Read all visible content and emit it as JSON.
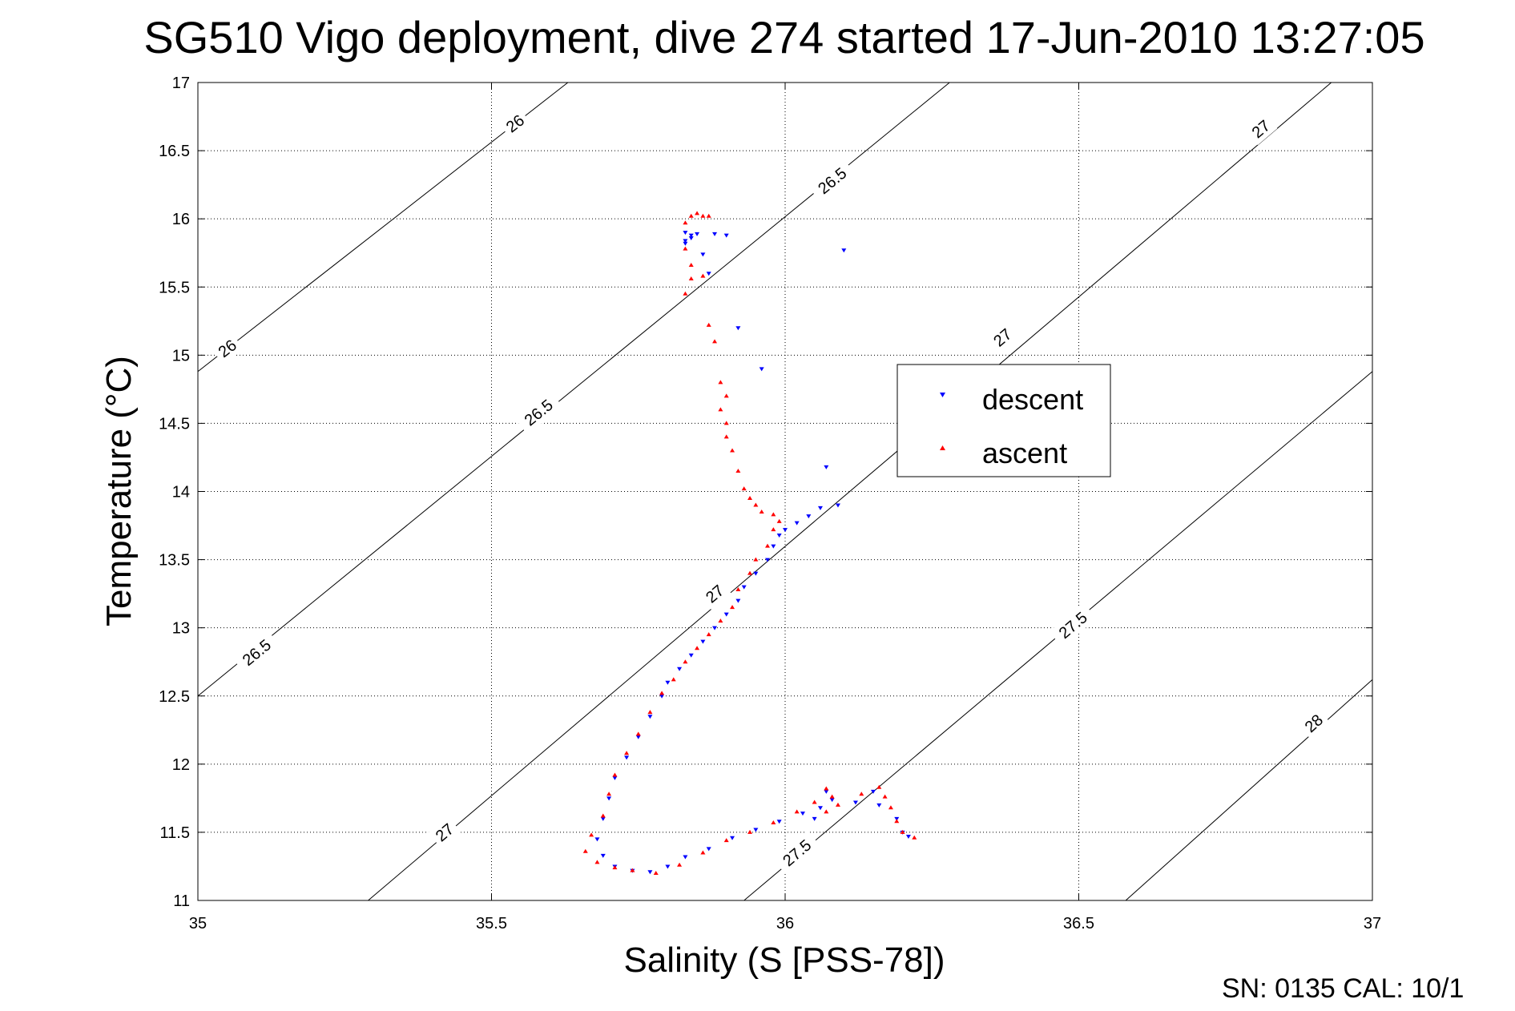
{
  "chart_data": {
    "type": "scatter",
    "title": "SG510 Vigo deployment, dive 274 started 17-Jun-2010 13:27:05",
    "xlabel": "Salinity (S [PSS-78])",
    "ylabel": "Temperature (°C)",
    "xlim": [
      35,
      37
    ],
    "ylim": [
      11,
      17
    ],
    "x_ticks": [
      35,
      35.5,
      36,
      36.5,
      37
    ],
    "x_tick_labels": [
      "35",
      "35.5",
      "36",
      "36.5",
      "37"
    ],
    "y_ticks": [
      11,
      11.5,
      12,
      12.5,
      13,
      13.5,
      14,
      14.5,
      15,
      15.5,
      16,
      16.5,
      17
    ],
    "y_tick_labels": [
      "11",
      "11.5",
      "12",
      "12.5",
      "13",
      "13.5",
      "14",
      "14.5",
      "15",
      "15.5",
      "16",
      "16.5",
      "17"
    ],
    "grid": true,
    "legend_position": "upper-right-center",
    "contours": [
      {
        "sigma": 26,
        "path": [
          [
            35,
            14.88
          ],
          [
            35.63,
            17
          ]
        ],
        "labels": [
          {
            "text": "26",
            "at": [
              35.05,
              15.05
            ]
          },
          {
            "text": "26",
            "at": [
              35.54,
              16.7
            ]
          }
        ]
      },
      {
        "sigma": 26.5,
        "path": [
          [
            35,
            12.5
          ],
          [
            36.28,
            17
          ]
        ],
        "labels": [
          {
            "text": "26.5",
            "at": [
              35.1,
              12.82
            ]
          },
          {
            "text": "26.5",
            "at": [
              35.58,
              14.58
            ]
          },
          {
            "text": "26.5",
            "at": [
              36.08,
              16.28
            ]
          }
        ]
      },
      {
        "sigma": 27,
        "path": [
          [
            35.29,
            11
          ],
          [
            36.93,
            17
          ]
        ],
        "labels": [
          {
            "text": "27",
            "at": [
              35.42,
              11.5
            ]
          },
          {
            "text": "27",
            "at": [
              35.88,
              13.25
            ]
          },
          {
            "text": "27",
            "at": [
              36.37,
              15.13
            ]
          },
          {
            "text": "27",
            "at": [
              36.81,
              16.66
            ]
          }
        ]
      },
      {
        "sigma": 27.5,
        "path": [
          [
            35.93,
            11
          ],
          [
            37,
            14.88
          ]
        ],
        "labels": [
          {
            "text": "27.5",
            "at": [
              36.02,
              11.35
            ]
          },
          {
            "text": "27.5",
            "at": [
              36.49,
              13.02
            ]
          }
        ]
      },
      {
        "sigma": 28,
        "path": [
          [
            36.58,
            11
          ],
          [
            37,
            12.62
          ]
        ],
        "labels": [
          {
            "text": "28",
            "at": [
              36.9,
              12.3
            ]
          }
        ]
      }
    ],
    "series": [
      {
        "name": "descent",
        "color": "#0000ff",
        "marker": "triangle-down",
        "points": [
          [
            35.83,
            15.9
          ],
          [
            35.84,
            15.88
          ],
          [
            35.84,
            15.86
          ],
          [
            35.83,
            15.84
          ],
          [
            35.83,
            15.82
          ],
          [
            35.85,
            15.89
          ],
          [
            35.88,
            15.89
          ],
          [
            35.9,
            15.88
          ],
          [
            35.86,
            15.74
          ],
          [
            35.87,
            15.6
          ],
          [
            35.92,
            15.2
          ],
          [
            35.96,
            14.9
          ],
          [
            36.1,
            15.77
          ],
          [
            36.07,
            14.18
          ],
          [
            36.09,
            13.9
          ],
          [
            36.06,
            13.88
          ],
          [
            36.04,
            13.82
          ],
          [
            36.02,
            13.77
          ],
          [
            36.0,
            13.72
          ],
          [
            35.99,
            13.68
          ],
          [
            35.98,
            13.6
          ],
          [
            35.97,
            13.5
          ],
          [
            35.95,
            13.4
          ],
          [
            35.93,
            13.3
          ],
          [
            35.92,
            13.2
          ],
          [
            35.9,
            13.1
          ],
          [
            35.88,
            13.0
          ],
          [
            35.86,
            12.9
          ],
          [
            35.84,
            12.8
          ],
          [
            35.82,
            12.7
          ],
          [
            35.8,
            12.6
          ],
          [
            35.79,
            12.5
          ],
          [
            35.77,
            12.35
          ],
          [
            35.75,
            12.2
          ],
          [
            35.73,
            12.05
          ],
          [
            35.71,
            11.9
          ],
          [
            35.7,
            11.75
          ],
          [
            35.69,
            11.6
          ],
          [
            35.68,
            11.45
          ],
          [
            35.69,
            11.33
          ],
          [
            35.71,
            11.25
          ],
          [
            35.74,
            11.22
          ],
          [
            35.77,
            11.21
          ],
          [
            35.8,
            11.25
          ],
          [
            35.83,
            11.32
          ],
          [
            35.87,
            11.38
          ],
          [
            35.91,
            11.46
          ],
          [
            35.95,
            11.52
          ],
          [
            35.99,
            11.58
          ],
          [
            36.03,
            11.64
          ],
          [
            36.06,
            11.68
          ],
          [
            36.08,
            11.74
          ],
          [
            36.07,
            11.8
          ],
          [
            36.05,
            11.6
          ],
          [
            36.12,
            11.72
          ],
          [
            36.15,
            11.8
          ],
          [
            36.16,
            11.7
          ],
          [
            36.19,
            11.6
          ],
          [
            36.2,
            11.5
          ],
          [
            36.21,
            11.47
          ]
        ]
      },
      {
        "name": "ascent",
        "color": "#ff0000",
        "marker": "triangle-up",
        "points": [
          [
            35.84,
            16.02
          ],
          [
            35.85,
            16.04
          ],
          [
            35.86,
            16.02
          ],
          [
            35.87,
            16.02
          ],
          [
            35.83,
            15.97
          ],
          [
            35.83,
            15.78
          ],
          [
            35.84,
            15.66
          ],
          [
            35.84,
            15.56
          ],
          [
            35.83,
            15.45
          ],
          [
            35.86,
            15.58
          ],
          [
            35.87,
            15.22
          ],
          [
            35.88,
            15.1
          ],
          [
            35.89,
            14.8
          ],
          [
            35.9,
            14.7
          ],
          [
            35.89,
            14.6
          ],
          [
            35.9,
            14.5
          ],
          [
            35.9,
            14.4
          ],
          [
            35.91,
            14.3
          ],
          [
            35.92,
            14.15
          ],
          [
            35.93,
            14.02
          ],
          [
            35.94,
            13.95
          ],
          [
            35.95,
            13.9
          ],
          [
            35.96,
            13.85
          ],
          [
            35.98,
            13.83
          ],
          [
            35.99,
            13.78
          ],
          [
            35.98,
            13.72
          ],
          [
            35.97,
            13.6
          ],
          [
            35.95,
            13.5
          ],
          [
            35.94,
            13.4
          ],
          [
            35.92,
            13.28
          ],
          [
            35.91,
            13.15
          ],
          [
            35.89,
            13.05
          ],
          [
            35.87,
            12.95
          ],
          [
            35.85,
            12.85
          ],
          [
            35.83,
            12.75
          ],
          [
            35.81,
            12.62
          ],
          [
            35.79,
            12.52
          ],
          [
            35.77,
            12.38
          ],
          [
            35.75,
            12.22
          ],
          [
            35.73,
            12.08
          ],
          [
            35.71,
            11.92
          ],
          [
            35.7,
            11.78
          ],
          [
            35.69,
            11.62
          ],
          [
            35.67,
            11.48
          ],
          [
            35.66,
            11.36
          ],
          [
            35.68,
            11.28
          ],
          [
            35.71,
            11.24
          ],
          [
            35.74,
            11.22
          ],
          [
            35.78,
            11.2
          ],
          [
            35.82,
            11.26
          ],
          [
            35.86,
            11.35
          ],
          [
            35.9,
            11.44
          ],
          [
            35.94,
            11.5
          ],
          [
            35.98,
            11.57
          ],
          [
            36.02,
            11.65
          ],
          [
            36.05,
            11.72
          ],
          [
            36.07,
            11.82
          ],
          [
            36.08,
            11.76
          ],
          [
            36.07,
            11.65
          ],
          [
            36.09,
            11.7
          ],
          [
            36.13,
            11.78
          ],
          [
            36.16,
            11.83
          ],
          [
            36.17,
            11.76
          ],
          [
            36.18,
            11.68
          ],
          [
            36.19,
            11.58
          ],
          [
            36.2,
            11.5
          ],
          [
            36.22,
            11.46
          ]
        ]
      }
    ]
  },
  "footer": {
    "serial_text": "SN: 0135  CAL: 10/1"
  }
}
